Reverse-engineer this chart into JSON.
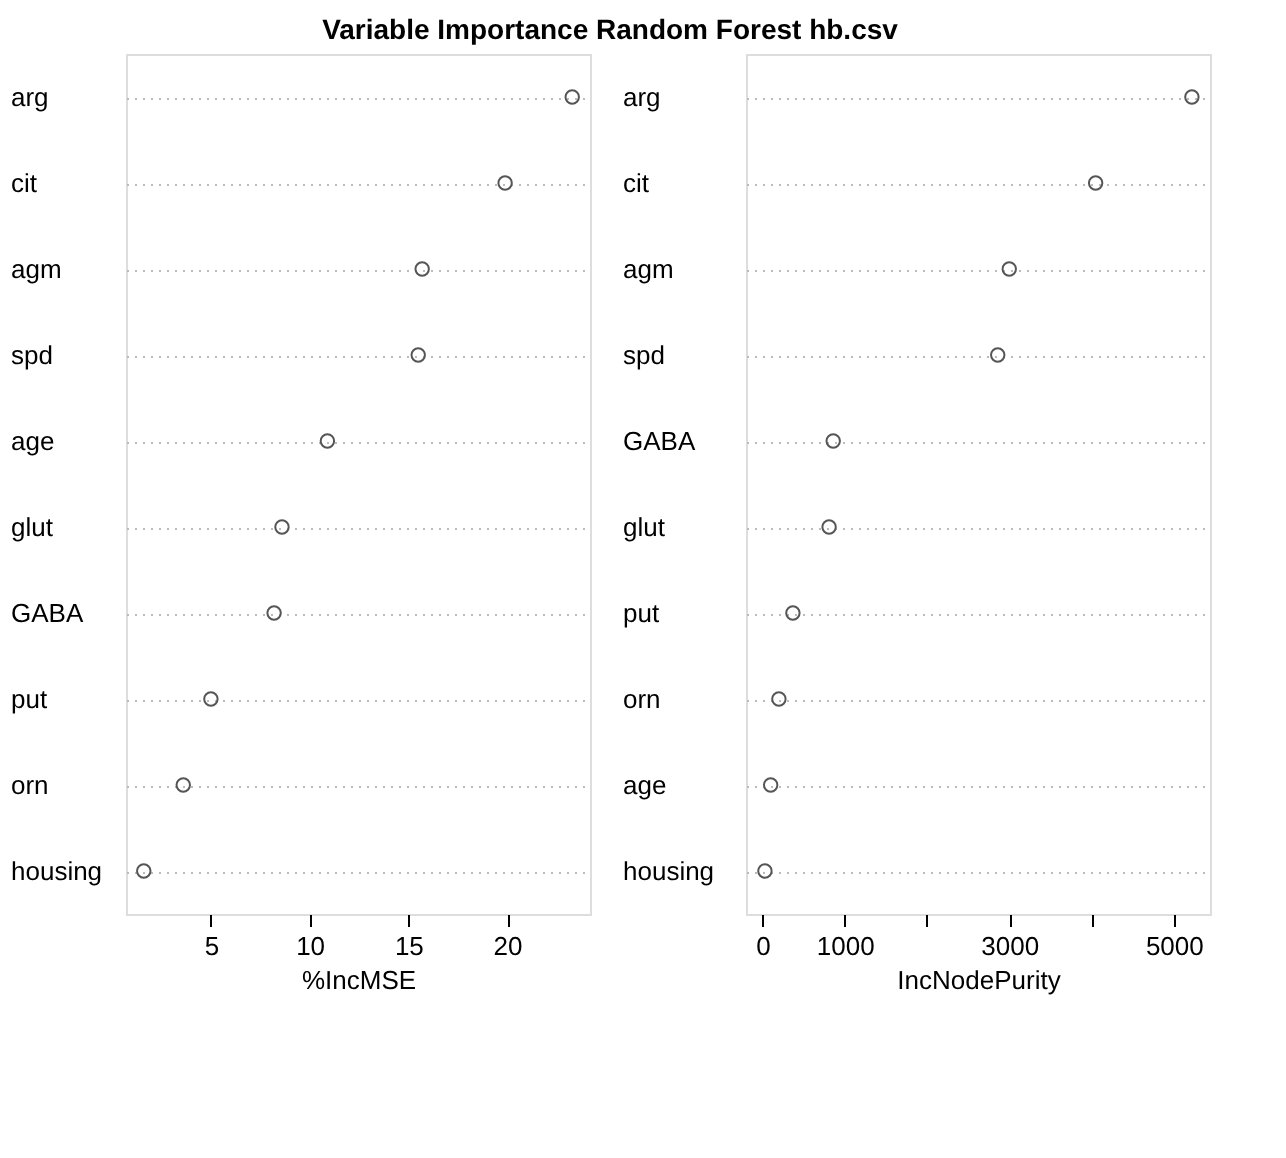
{
  "chart_data": [
    {
      "type": "scatter",
      "title": "Variable Importance Random Forest hb.csv",
      "orientation": "horizontal",
      "xlabel": "%IncMSE",
      "categories": [
        "arg",
        "cit",
        "agm",
        "spd",
        "age",
        "glut",
        "GABA",
        "put",
        "orn",
        "housing"
      ],
      "series": [
        {
          "color": "#555555",
          "values": [
            23.3,
            19.9,
            15.7,
            15.5,
            10.9,
            8.6,
            8.2,
            5.0,
            3.6,
            1.6
          ]
        }
      ],
      "xlim": [
        0.7,
        24.2
      ],
      "xticks": [
        5,
        10,
        15,
        20
      ],
      "grid": "y",
      "line_style": "dotted",
      "marker": "circle"
    },
    {
      "type": "scatter",
      "orientation": "horizontal",
      "xlabel": "IncNodePurity",
      "categories": [
        "arg",
        "cit",
        "agm",
        "spd",
        "GABA",
        "glut",
        "put",
        "orn",
        "age",
        "housing"
      ],
      "series": [
        {
          "color": "#555555",
          "values": [
            5220,
            4050,
            3000,
            2860,
            860,
            810,
            370,
            200,
            100,
            30
          ]
        }
      ],
      "xlim": [
        -200,
        5440
      ],
      "xticks": [
        0,
        1000,
        {
          "value": 2000,
          "label": null
        },
        3000,
        {
          "value": 4000,
          "label": null
        },
        5000
      ],
      "grid": "y",
      "line_style": "dotted",
      "marker": "circle"
    }
  ]
}
